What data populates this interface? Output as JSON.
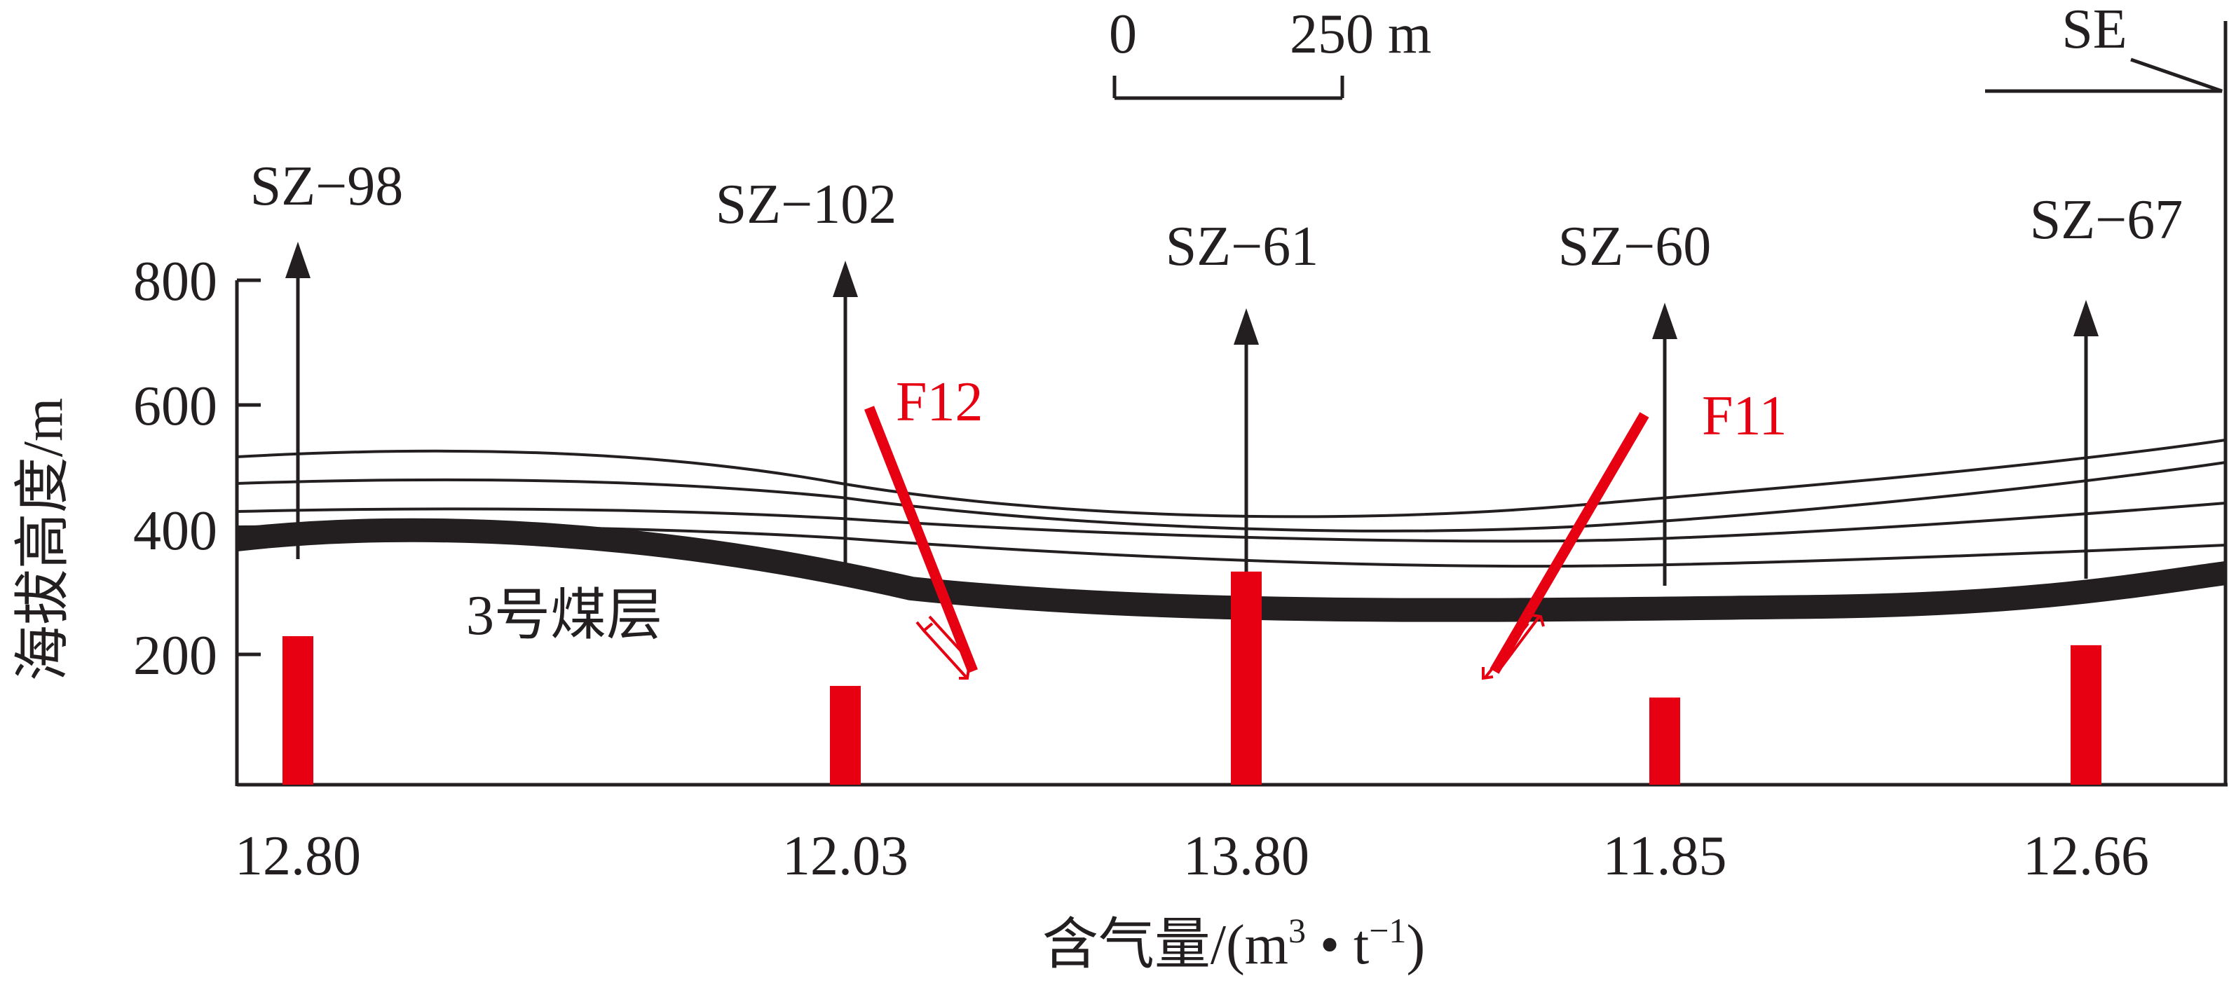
{
  "scale_bar": {
    "start": "0",
    "end": "250 m"
  },
  "direction": "SE",
  "y_axis": {
    "label": "海拔高度/m",
    "ticks": [
      "800",
      "600",
      "400",
      "200"
    ],
    "range": [
      0,
      800
    ]
  },
  "x_axis": {
    "label_main": "含气量/(m",
    "label_sup1": "3",
    "label_mid": " • t",
    "label_sup2": "−1",
    "label_end": ")"
  },
  "wells": [
    {
      "name": "SZ−98",
      "gas": "12.80",
      "bar_value": 12.8
    },
    {
      "name": "SZ−102",
      "gas": "12.03",
      "bar_value": 12.03
    },
    {
      "name": "SZ−61",
      "gas": "13.80",
      "bar_value": 13.8
    },
    {
      "name": "SZ−60",
      "gas": "11.85",
      "bar_value": 11.85
    },
    {
      "name": "SZ−67",
      "gas": "12.66",
      "bar_value": 12.66
    }
  ],
  "faults": [
    {
      "name": "F12"
    },
    {
      "name": "F11"
    }
  ],
  "coal_seam_label": "3号煤层",
  "colors": {
    "ink": "#231f20",
    "accent": "#e60012"
  }
}
